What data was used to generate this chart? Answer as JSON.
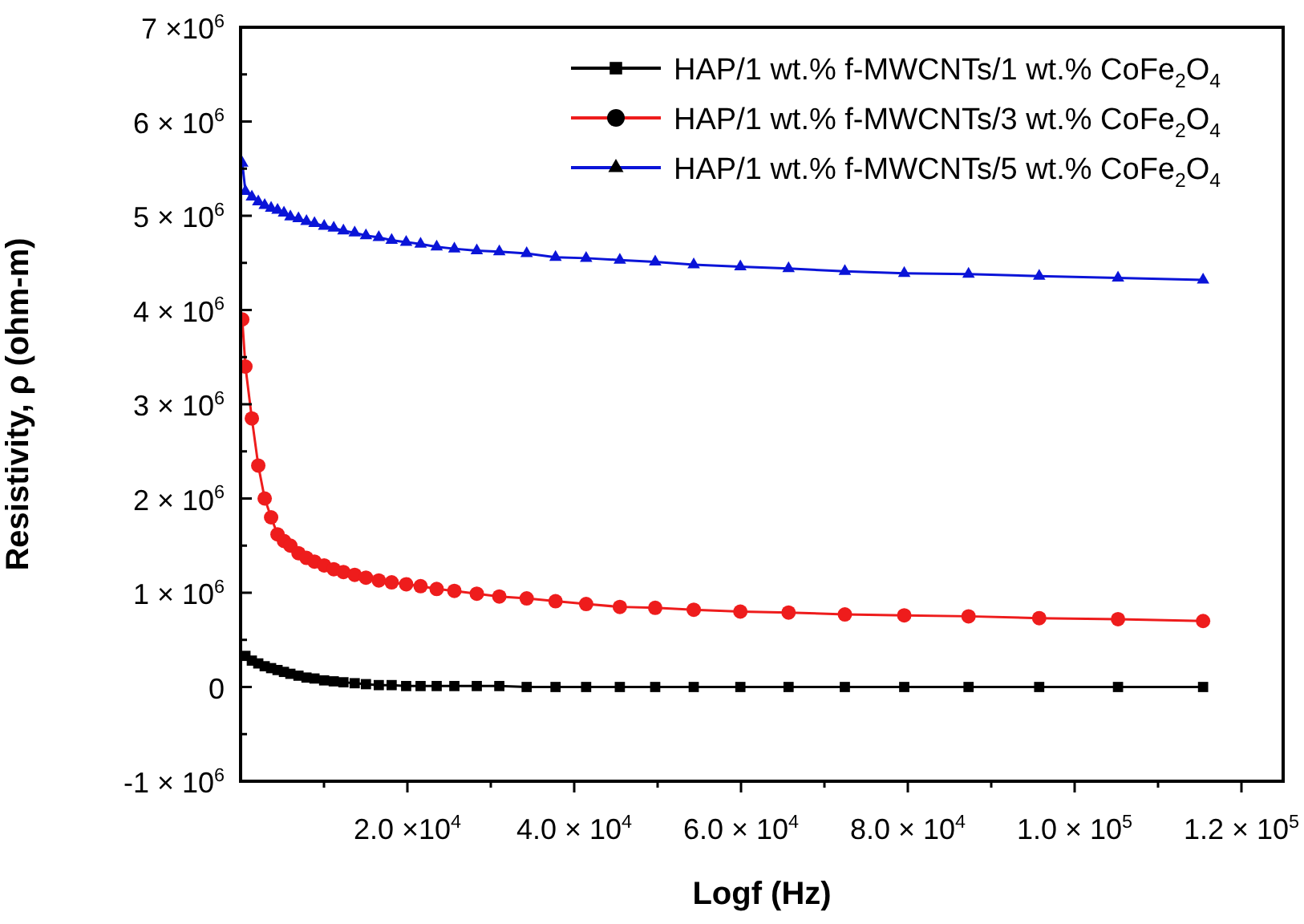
{
  "chart_data": {
    "type": "line",
    "xlabel": "Logf (Hz)",
    "ylabel": "Resistivity, ρ (ohm-m)",
    "x": [
      200,
      580,
      1350,
      2120,
      2890,
      3660,
      4430,
      5200,
      5970,
      6940,
      7900,
      8860,
      10020,
      11170,
      12330,
      13680,
      15030,
      16570,
      18110,
      19850,
      21580,
      23510,
      25630,
      28320,
      31020,
      34300,
      37760,
      41430,
      45470,
      49710,
      54330,
      59920,
      65700,
      72450,
      79570,
      87280,
      95750,
      105200,
      115400
    ],
    "series": [
      {
        "name": "HAP/1 wt.% f-MWCNTs/1 wt.% CoFe$_{2}$O$_{4}$",
        "color": "#000000",
        "marker": "square",
        "values": [
          null,
          330000,
          280000,
          250000,
          220000,
          200000,
          180000,
          160000,
          140000,
          120000,
          100000,
          90000,
          70000,
          60000,
          50000,
          40000,
          30000,
          20000,
          20000,
          10000,
          10000,
          10000,
          10000,
          10000,
          10000,
          0,
          0,
          0,
          0,
          0,
          0,
          0,
          0,
          0,
          0,
          0,
          0,
          0,
          0
        ]
      },
      {
        "name": "HAP/1 wt.% f-MWCNTs/3 wt.% CoFe$_{2}$O$_{4}$",
        "color": "#ee1c1c",
        "marker": "circle",
        "values": [
          3900000,
          3400000,
          2850000,
          2350000,
          2000000,
          1800000,
          1620000,
          1550000,
          1500000,
          1420000,
          1370000,
          1330000,
          1290000,
          1250000,
          1220000,
          1190000,
          1160000,
          1130000,
          1110000,
          1090000,
          1070000,
          1040000,
          1020000,
          990000,
          960000,
          940000,
          910000,
          880000,
          850000,
          840000,
          820000,
          800000,
          790000,
          770000,
          760000,
          750000,
          730000,
          720000,
          700000
        ]
      },
      {
        "name": "HAP/1 wt.% f-MWCNTs/5 wt.% CoFe$_{2}$O$_{4}$",
        "color": "#0a14d8",
        "marker": "triangle",
        "values": [
          5560000,
          5260000,
          5200000,
          5150000,
          5110000,
          5080000,
          5060000,
          5030000,
          4990000,
          4970000,
          4940000,
          4920000,
          4890000,
          4870000,
          4840000,
          4820000,
          4790000,
          4770000,
          4740000,
          4720000,
          4700000,
          4670000,
          4650000,
          4630000,
          4620000,
          4600000,
          4560000,
          4550000,
          4530000,
          4510000,
          4480000,
          4460000,
          4440000,
          4410000,
          4390000,
          4380000,
          4360000,
          4340000,
          4320000
        ]
      }
    ],
    "xlim": [
      0,
      125000
    ],
    "xticks": [
      {
        "value": 10000,
        "label": null
      },
      {
        "value": 20000,
        "label": "2.0 ×10$^{4}$"
      },
      {
        "value": 30000,
        "label": null
      },
      {
        "value": 40000,
        "label": "4.0 × 10$^{4}$"
      },
      {
        "value": 50000,
        "label": null
      },
      {
        "value": 60000,
        "label": "6.0 × 10$^{4}$"
      },
      {
        "value": 70000,
        "label": null
      },
      {
        "value": 80000,
        "label": "8.0 × 10$^{4}$"
      },
      {
        "value": 90000,
        "label": null
      },
      {
        "value": 100000,
        "label": "1.0 × 10$^{5}$"
      },
      {
        "value": 110000,
        "label": null
      },
      {
        "value": 120000,
        "label": "1.2 × 10$^{5}$"
      }
    ],
    "ylim": [
      -1000000,
      7000000
    ],
    "yticks": [
      {
        "value": -1000000,
        "label": "-1 × 10$^{6}$"
      },
      {
        "value": -500000,
        "label": null
      },
      {
        "value": 0,
        "label": "0"
      },
      {
        "value": 500000,
        "label": null
      },
      {
        "value": 1000000,
        "label": "1 × 10$^{6}$"
      },
      {
        "value": 1500000,
        "label": null
      },
      {
        "value": 2000000,
        "label": "2 × 10$^{6}$"
      },
      {
        "value": 2500000,
        "label": null
      },
      {
        "value": 3000000,
        "label": "3 × 10$^{6}$"
      },
      {
        "value": 3500000,
        "label": null
      },
      {
        "value": 4000000,
        "label": "4 × 10$^{6}$"
      },
      {
        "value": 4500000,
        "label": null
      },
      {
        "value": 5000000,
        "label": "5 × 10$^{6}$"
      },
      {
        "value": 5500000,
        "label": null
      },
      {
        "value": 6000000,
        "label": "6 × 10$^{6}$"
      },
      {
        "value": 6500000,
        "label": null
      },
      {
        "value": 7000000,
        "label": "7 ×10$^{6}$"
      }
    ],
    "legend": "top right",
    "line_style": "solid"
  }
}
